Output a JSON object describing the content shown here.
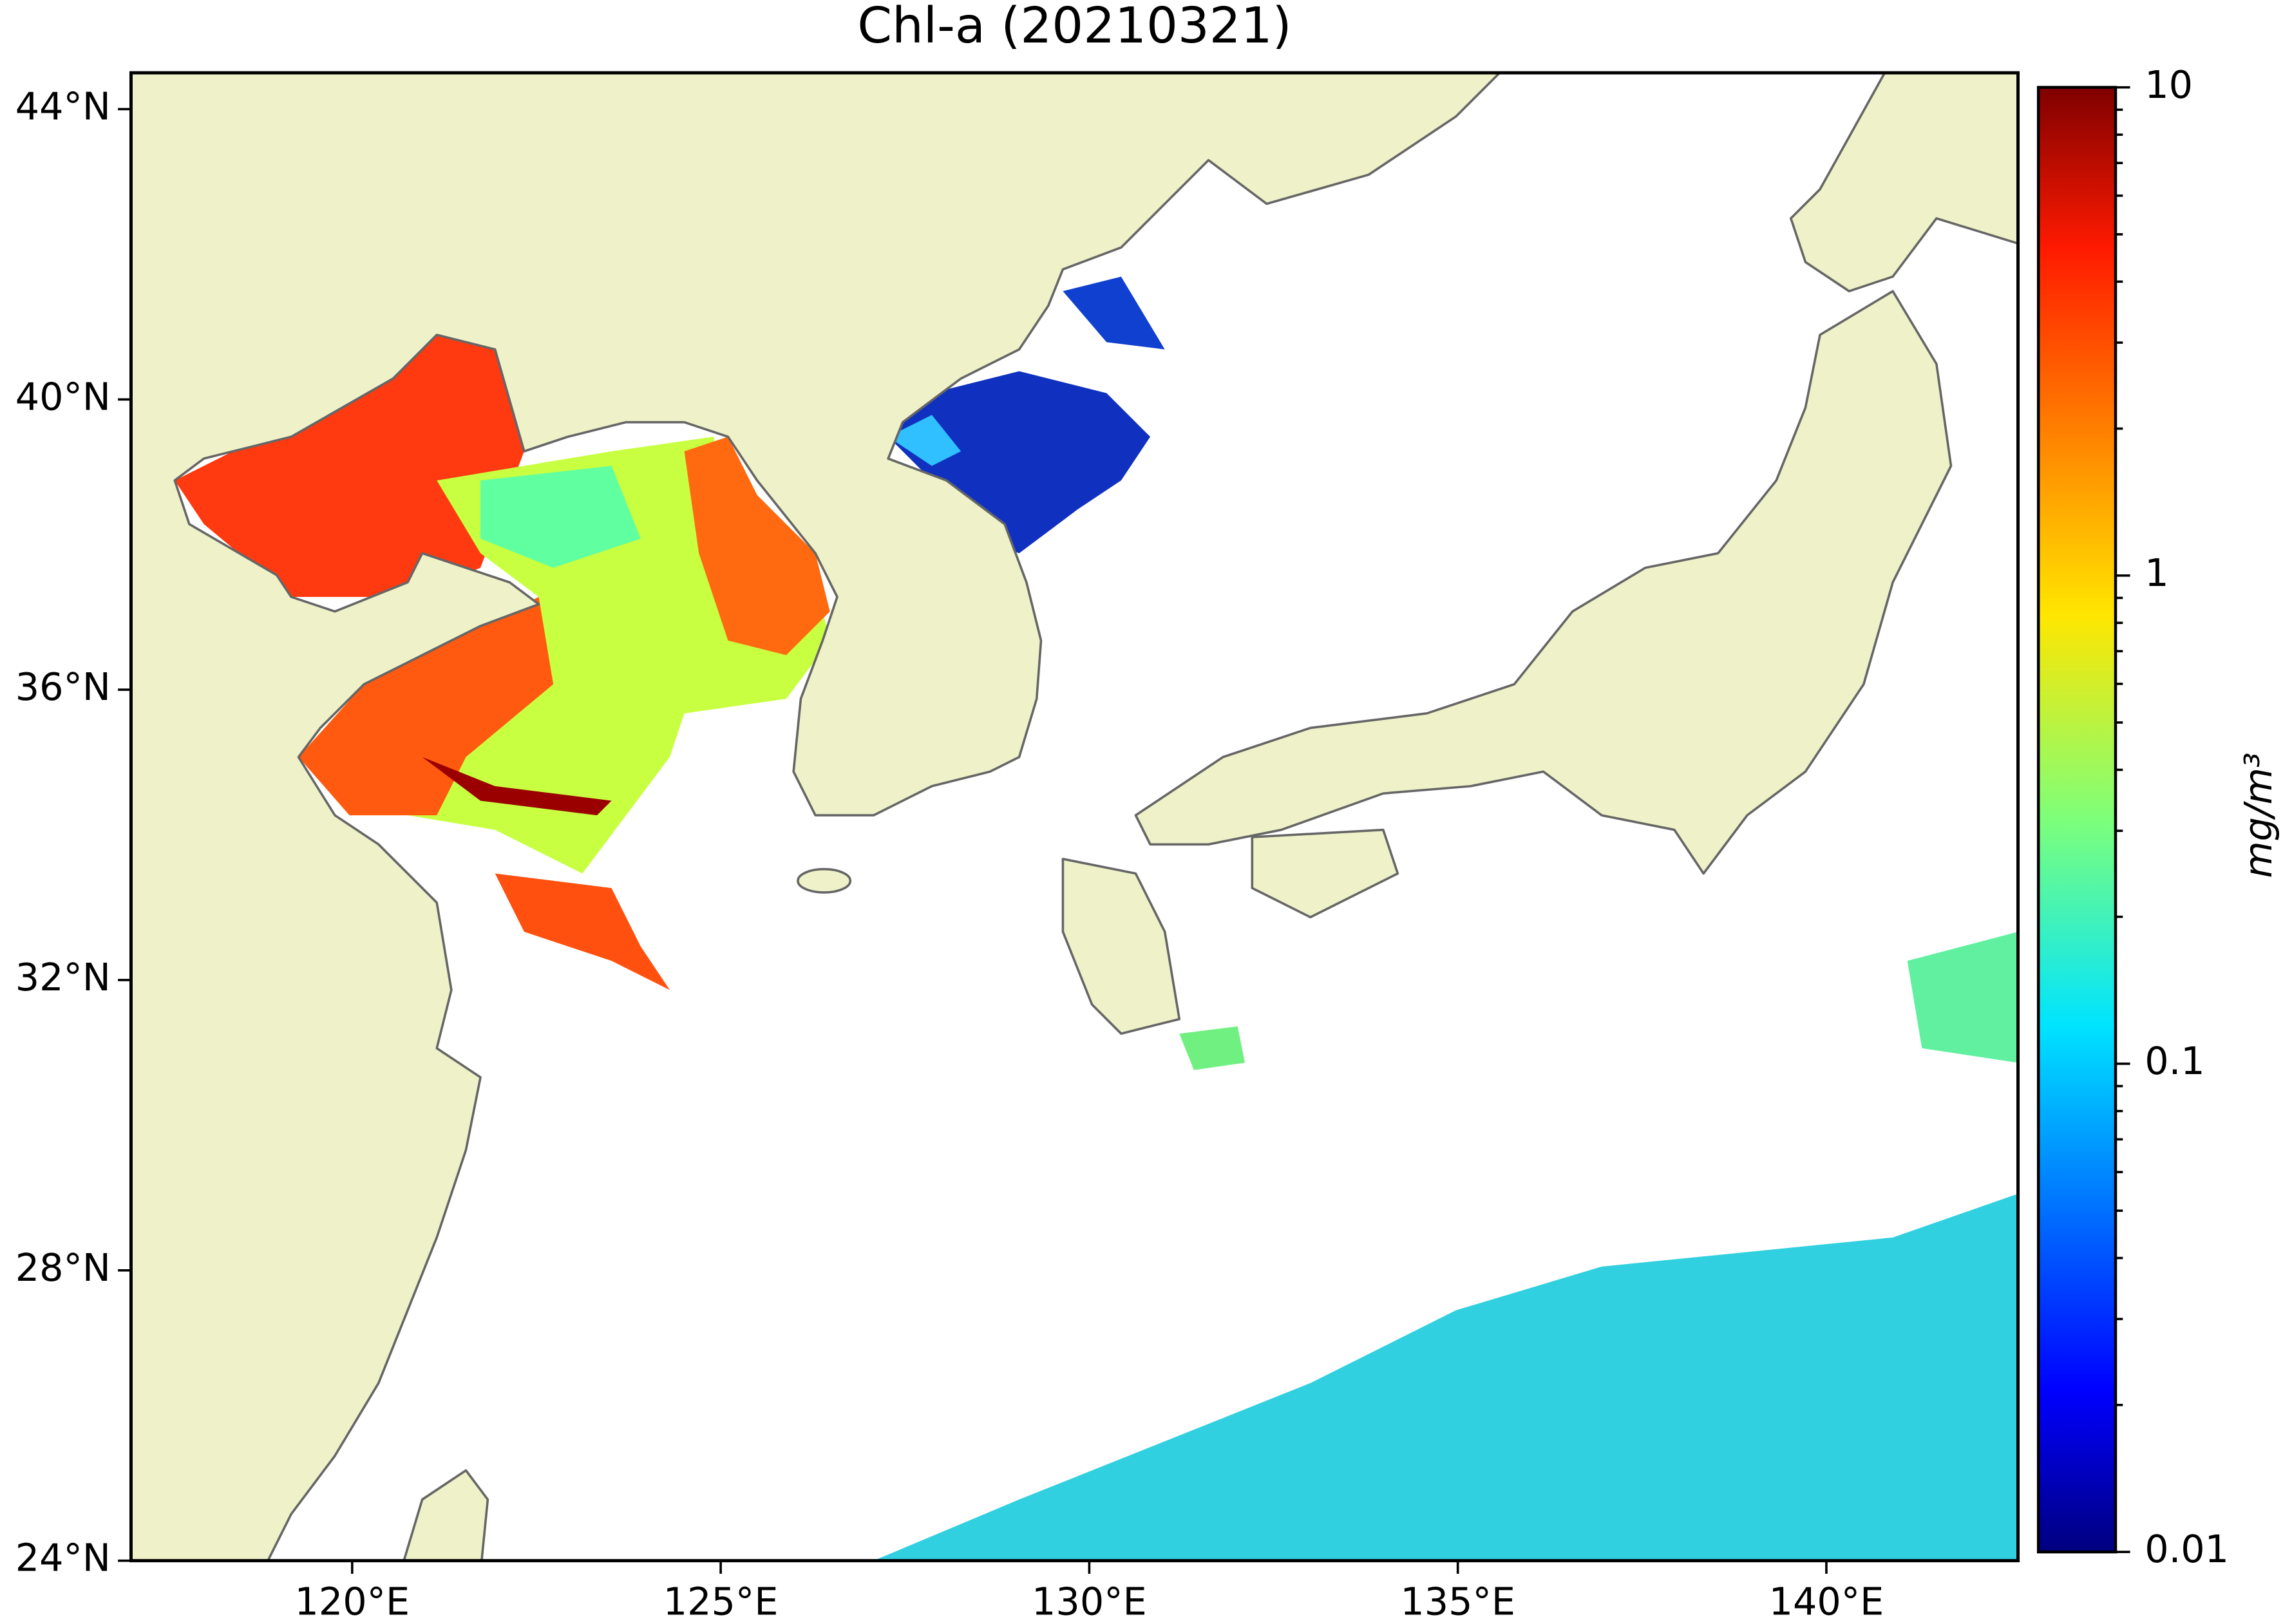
{
  "map": {
    "title": "Chl-a (20210321)",
    "xlim": [
      117,
      142.6
    ],
    "ylim": [
      24,
      44.5
    ],
    "xticks": [
      {
        "value": 120,
        "label": "120°E"
      },
      {
        "value": 125,
        "label": "125°E"
      },
      {
        "value": 130,
        "label": "130°E"
      },
      {
        "value": 135,
        "label": "135°E"
      },
      {
        "value": 140,
        "label": "140°E"
      }
    ],
    "yticks": [
      {
        "value": 24,
        "label": "24°N"
      },
      {
        "value": 28,
        "label": "28°N"
      },
      {
        "value": 32,
        "label": "32°N"
      },
      {
        "value": 36,
        "label": "36°N"
      },
      {
        "value": 40,
        "label": "40°N"
      },
      {
        "value": 44,
        "label": "44°N"
      }
    ],
    "colorbar": {
      "label": "mg/m³",
      "log_scale": true,
      "colormap": "jet",
      "lim": [
        0.01,
        10
      ],
      "ticks": [
        0.01,
        0.1,
        1,
        10
      ],
      "minor_ticks": true
    }
  }
}
